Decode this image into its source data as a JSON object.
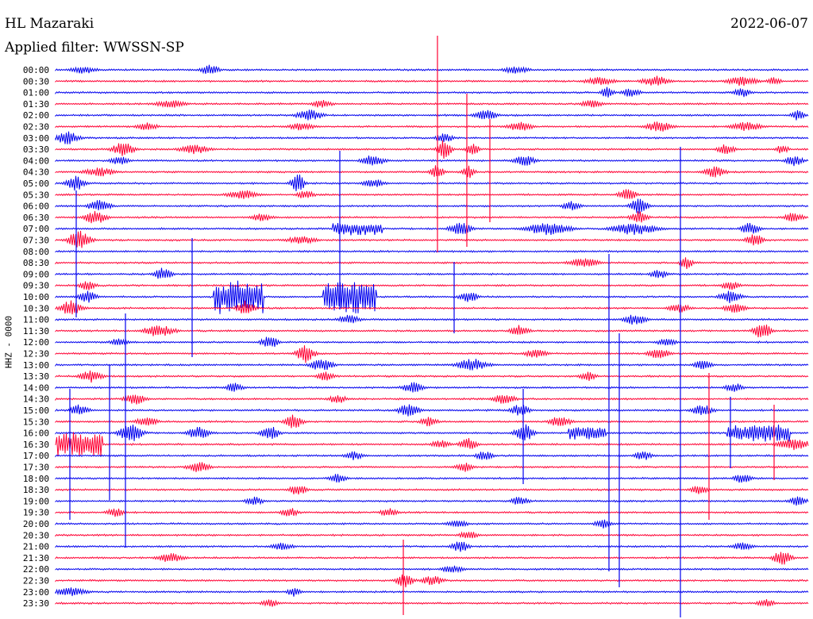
{
  "header": {
    "station": "HL Mazaraki",
    "date": "2022-06-07",
    "filter": "Applied filter: WWSSN-SP"
  },
  "channel_label": "HHZ - 0000",
  "chart_data": {
    "type": "helicorder",
    "row_minutes": 30,
    "colors": [
      "#0000ee",
      "#ff0033"
    ],
    "time_labels": [
      "00:00",
      "00:30",
      "01:00",
      "01:30",
      "02:00",
      "02:30",
      "03:00",
      "03:30",
      "04:00",
      "04:30",
      "05:00",
      "05:30",
      "06:00",
      "06:30",
      "07:00",
      "07:30",
      "08:00",
      "08:30",
      "09:00",
      "09:30",
      "10:00",
      "10:30",
      "11:00",
      "11:30",
      "12:00",
      "12:30",
      "13:00",
      "13:30",
      "14:00",
      "14:30",
      "15:00",
      "15:30",
      "16:00",
      "16:30",
      "17:00",
      "17:30",
      "18:00",
      "18:30",
      "19:00",
      "19:30",
      "20:00",
      "20:30",
      "21:00",
      "21:30",
      "22:00",
      "22:30",
      "23:00",
      "23:30"
    ]
  }
}
